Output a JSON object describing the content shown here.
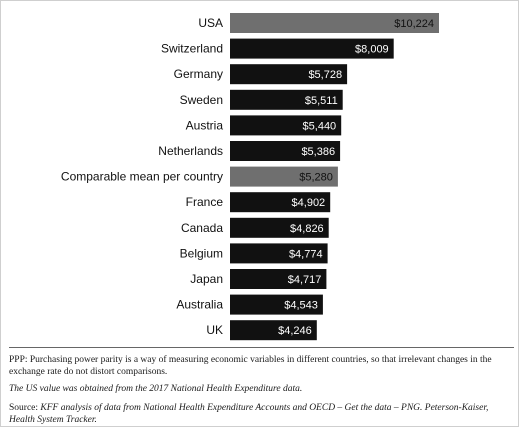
{
  "chart_data": {
    "type": "bar",
    "orientation": "horizontal",
    "title": "",
    "xlabel": "",
    "ylabel": "",
    "categories": [
      "USA",
      "Switzerland",
      "Germany",
      "Sweden",
      "Austria",
      "Netherlands",
      "Comparable mean per country",
      "France",
      "Canada",
      "Belgium",
      "Japan",
      "Australia",
      "UK"
    ],
    "values": [
      10224,
      8009,
      5728,
      5511,
      5440,
      5386,
      5280,
      4902,
      4826,
      4774,
      4717,
      4543,
      4246
    ],
    "value_labels": [
      "$10,224",
      "$8,009",
      "$5,728",
      "$5,511",
      "$5,440",
      "$5,386",
      "$5,280",
      "$4,902",
      "$4,826",
      "$4,774",
      "$4,717",
      "$4,543",
      "$4,246"
    ],
    "highlighted": [
      "USA",
      "Comparable mean per country"
    ],
    "xlim": [
      0,
      10224
    ],
    "grid": false,
    "legend": "none"
  },
  "colors": {
    "bar_default": "#111111",
    "bar_highlight": "#6f6f6f",
    "label_on_dark": "#ffffff",
    "label_on_highlight": "#111111"
  },
  "notes": {
    "ppp": "PPP: Purchasing power parity is a way of measuring economic variables in different countries, so that irrelevant changes in the exchange rate do not distort comparisons.",
    "us_value": "The US value was obtained from the 2017 National Health Expenditure data.",
    "source_label": "Source:",
    "source_text": "KFF analysis of data from National Health Expenditure Accounts and OECD – Get the data – PNG. Peterson-Kaiser, Health System Tracker."
  }
}
